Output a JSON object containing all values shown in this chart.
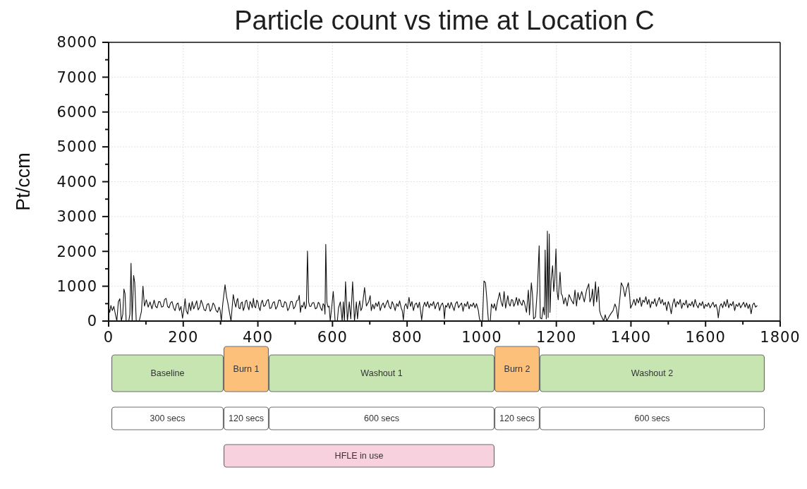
{
  "chart_data": {
    "type": "line",
    "title": "Particle count vs time at Location C",
    "ylabel": "Pt/ccm",
    "xlim": [
      0,
      1800
    ],
    "xticks": [
      0,
      {
        "value": 100,
        "label": null
      },
      200,
      {
        "value": 300,
        "label": null
      },
      400,
      {
        "value": 500,
        "label": null
      },
      600,
      {
        "value": 700,
        "label": null
      },
      800,
      {
        "value": 900,
        "label": null
      },
      1000,
      {
        "value": 1100,
        "label": null
      },
      1200,
      {
        "value": 1300,
        "label": null
      },
      1400,
      {
        "value": 1500,
        "label": null
      },
      1600,
      {
        "value": 1700,
        "label": null
      },
      1800
    ],
    "ylim": [
      0,
      8000
    ],
    "yticks": [
      0,
      {
        "value": 500,
        "label": null
      },
      1000,
      {
        "value": 1500,
        "label": null
      },
      2000,
      {
        "value": 2500,
        "label": null
      },
      3000,
      {
        "value": 3500,
        "label": null
      },
      4000,
      {
        "value": 4500,
        "label": null
      },
      5000,
      {
        "value": 5500,
        "label": null
      },
      6000,
      {
        "value": 6500,
        "label": null
      },
      7000,
      {
        "value": 7500,
        "label": null
      },
      8000
    ],
    "grid": true,
    "annotations": [
      "Baseline",
      "Burn 1",
      "Washout 1",
      "Burn 2",
      "Washout 2",
      "300 secs",
      "120 secs",
      "600 secs",
      "120 secs",
      "600 secs",
      "HFLE in use"
    ],
    "x": [
      0,
      3,
      6,
      10,
      14,
      18,
      22,
      26,
      30,
      34,
      38,
      41,
      44,
      47,
      54,
      57,
      60,
      63,
      67,
      70,
      74,
      82,
      88,
      92,
      96,
      101,
      106,
      111,
      116,
      122,
      126,
      130,
      134,
      138,
      142,
      146,
      150,
      154,
      158,
      162,
      166,
      170,
      174,
      178,
      182,
      186,
      190,
      194,
      198,
      202,
      205,
      208,
      212,
      216,
      220,
      224,
      228,
      232,
      236,
      240,
      244,
      248,
      252,
      256,
      260,
      264,
      268,
      272,
      276,
      280,
      284,
      288,
      292,
      296,
      299,
      302,
      306,
      312,
      316,
      319,
      323,
      328,
      334,
      338,
      341,
      344,
      346,
      349,
      352,
      355,
      358,
      361,
      364,
      367,
      370,
      373,
      376,
      379,
      382,
      385,
      388,
      391,
      394,
      397,
      400,
      403,
      406,
      409,
      412,
      416,
      420,
      424,
      428,
      432,
      436,
      440,
      444,
      448,
      452,
      456,
      460,
      464,
      468,
      472,
      476,
      480,
      484,
      488,
      492,
      496,
      500,
      504,
      508,
      511,
      514,
      517,
      520,
      524,
      527,
      530,
      533,
      536,
      539,
      542,
      546,
      550,
      554,
      558,
      562,
      565,
      568,
      572,
      575,
      578,
      580,
      582,
      585,
      588,
      591,
      594,
      598,
      602,
      604,
      607,
      613,
      616,
      621,
      626,
      629,
      632,
      635,
      640,
      645,
      649,
      654,
      659,
      664,
      667,
      670,
      673,
      676,
      679,
      682,
      686,
      691,
      694,
      697,
      701,
      704,
      708,
      712,
      716,
      720,
      724,
      728,
      732,
      736,
      740,
      744,
      748,
      752,
      756,
      760,
      764,
      768,
      772,
      776,
      780,
      784,
      787,
      790,
      793,
      797,
      801,
      805,
      809,
      813,
      817,
      821,
      825,
      829,
      833,
      836,
      839,
      843,
      847,
      851,
      855,
      859,
      863,
      867,
      871,
      875,
      879,
      883,
      887,
      891,
      895,
      898,
      900,
      903,
      906,
      910,
      914,
      918,
      922,
      926,
      930,
      934,
      938,
      942,
      946,
      950,
      954,
      958,
      962,
      966,
      970,
      974,
      978,
      982,
      986,
      988,
      991,
      994,
      997,
      1002,
      1006,
      1010,
      1013,
      1018,
      1023,
      1026,
      1031,
      1034,
      1038,
      1042,
      1045,
      1048,
      1052,
      1056,
      1060,
      1064,
      1067,
      1070,
      1073,
      1076,
      1080,
      1083,
      1086,
      1089,
      1093,
      1097,
      1100,
      1104,
      1108,
      1111,
      1114,
      1117,
      1120,
      1125,
      1128,
      1133,
      1136,
      1139,
      1144,
      1149,
      1154,
      1157,
      1161,
      1165,
      1168,
      1170,
      1173,
      1176,
      1178,
      1181,
      1183,
      1186,
      1190,
      1193,
      1196,
      1199,
      1202,
      1205,
      1210,
      1213,
      1216,
      1220,
      1224,
      1229,
      1234,
      1240,
      1246,
      1250,
      1254,
      1258,
      1262,
      1268,
      1275,
      1281,
      1287,
      1290,
      1294,
      1297,
      1300,
      1305,
      1308,
      1313,
      1316,
      1319,
      1323,
      1327,
      1331,
      1335,
      1341,
      1346,
      1352,
      1357,
      1361,
      1365,
      1367,
      1371,
      1374,
      1379,
      1384,
      1388,
      1393,
      1396,
      1399,
      1404,
      1408,
      1412,
      1416,
      1420,
      1424,
      1428,
      1432,
      1436,
      1440,
      1444,
      1448,
      1452,
      1456,
      1460,
      1464,
      1468,
      1472,
      1476,
      1480,
      1484,
      1488,
      1492,
      1496,
      1500,
      1504,
      1508,
      1512,
      1516,
      1520,
      1524,
      1528,
      1532,
      1536,
      1540,
      1544,
      1548,
      1552,
      1556,
      1560,
      1564,
      1568,
      1572,
      1576,
      1580,
      1584,
      1588,
      1592,
      1596,
      1600,
      1604,
      1608,
      1612,
      1616,
      1620,
      1624,
      1628,
      1632,
      1634,
      1638,
      1642,
      1646,
      1650,
      1654,
      1658,
      1662,
      1666,
      1670,
      1674,
      1678,
      1682,
      1686,
      1690,
      1694,
      1698,
      1702,
      1706,
      1710,
      1714,
      1718,
      1722,
      1726,
      1730,
      1734,
      1738
    ],
    "series": [
      {
        "color": "#111111",
        "values": [
          400,
          250,
          450,
          300,
          420,
          200,
          0,
          550,
          640,
          0,
          200,
          920,
          780,
          0,
          0,
          200,
          1660,
          0,
          1310,
          1100,
          0,
          0,
          280,
          1000,
          430,
          610,
          400,
          550,
          350,
          600,
          420,
          380,
          560,
          550,
          400,
          420,
          620,
          650,
          420,
          380,
          520,
          560,
          380,
          300,
          480,
          520,
          300,
          420,
          80,
          350,
          640,
          300,
          200,
          520,
          300,
          560,
          350,
          450,
          580,
          320,
          400,
          600,
          480,
          320,
          300,
          480,
          500,
          280,
          350,
          520,
          450,
          300,
          250,
          400,
          300,
          0,
          500,
          1040,
          700,
          550,
          300,
          0,
          760,
          520,
          400,
          600,
          650,
          380,
          350,
          520,
          550,
          300,
          400,
          580,
          600,
          420,
          320,
          560,
          500,
          380,
          650,
          420,
          380,
          600,
          550,
          380,
          300,
          520,
          600,
          420,
          450,
          580,
          620,
          360,
          380,
          520,
          560,
          340,
          420,
          600,
          600,
          420,
          400,
          560,
          520,
          300,
          380,
          560,
          560,
          350,
          420,
          580,
          600,
          740,
          250,
          450,
          400,
          550,
          350,
          450,
          2010,
          550,
          420,
          420,
          520,
          530,
          350,
          380,
          540,
          500,
          380,
          300,
          500,
          450,
          200,
          2200,
          550,
          400,
          430,
          0,
          400,
          850,
          550,
          0,
          0,
          370,
          550,
          0,
          550,
          0,
          1130,
          0,
          550,
          60,
          1130,
          0,
          550,
          60,
          400,
          580,
          300,
          370,
          600,
          960,
          430,
          500,
          550,
          730,
          300,
          480,
          350,
          520,
          420,
          560,
          300,
          450,
          520,
          380,
          500,
          600,
          420,
          350,
          560,
          460,
          300,
          500,
          420,
          580,
          380,
          300,
          30,
          420,
          500,
          350,
          680,
          420,
          560,
          300,
          480,
          520,
          380,
          540,
          300,
          30,
          400,
          540,
          420,
          560,
          380,
          500,
          440,
          560,
          350,
          480,
          540,
          300,
          460,
          520,
          380,
          60,
          450,
          400,
          520,
          360,
          540,
          420,
          300,
          500,
          560,
          380,
          460,
          520,
          280,
          500,
          420,
          560,
          350,
          480,
          420,
          520,
          380,
          500,
          420,
          300,
          60,
          0,
          0,
          1150,
          1100,
          730,
          0,
          0,
          490,
          370,
          500,
          300,
          550,
          670,
          820,
          550,
          420,
          850,
          370,
          550,
          730,
          500,
          430,
          620,
          600,
          420,
          500,
          680,
          450,
          640,
          520,
          450,
          600,
          550,
          400,
          250,
          890,
          180,
          1100,
          760,
          60,
          120,
          890,
          2160,
          90,
          60,
          400,
          180,
          2040,
          60,
          2580,
          100,
          2500,
          250,
          1160,
          1590,
          850,
          1200,
          2070,
          850,
          610,
          1400,
          790,
          730,
          490,
          670,
          430,
          760,
          610,
          490,
          890,
          430,
          820,
          610,
          850,
          550,
          890,
          1070,
          550,
          670,
          920,
          430,
          1130,
          550,
          980,
          300,
          180,
          90,
          0,
          180,
          0,
          120,
          210,
          300,
          490,
          370,
          60,
          300,
          730,
          1100,
          980,
          700,
          920,
          1100,
          790,
          370,
          490,
          620,
          450,
          640,
          520,
          680,
          420,
          600,
          540,
          700,
          480,
          620,
          380,
          560,
          500,
          640,
          420,
          560,
          680,
          500,
          620,
          460,
          540,
          300,
          560,
          440,
          210,
          500,
          640,
          400,
          560,
          480,
          620,
          360,
          520,
          460,
          600,
          380,
          500,
          440,
          560,
          400,
          620,
          460,
          380,
          520,
          440,
          560,
          360,
          480,
          420,
          520,
          380,
          460,
          540,
          400,
          480,
          300,
          90,
          420,
          500,
          380,
          560,
          420,
          620,
          380,
          500,
          440,
          560,
          300,
          480,
          420,
          520,
          380,
          460,
          540,
          400,
          520,
          360,
          480,
          210,
          460,
          520,
          400,
          440
        ]
      }
    ]
  }
}
